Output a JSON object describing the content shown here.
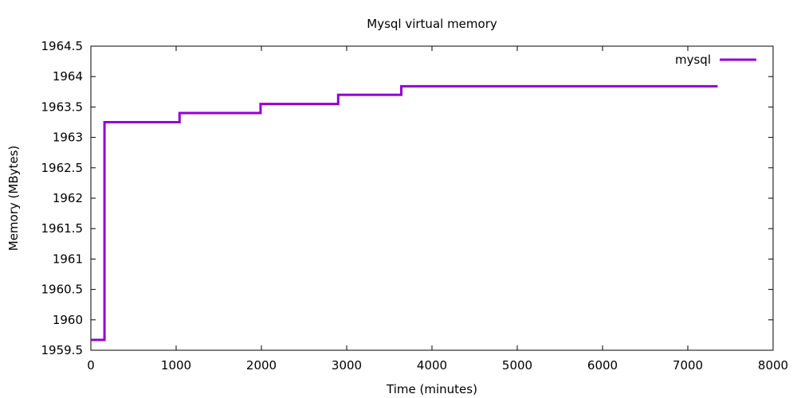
{
  "chart_data": {
    "type": "line",
    "title": "Mysql virtual memory",
    "xlabel": "Time (minutes)",
    "ylabel": "Memory (MBytes)",
    "xlim": [
      0,
      8000
    ],
    "ylim": [
      1959.5,
      1964.5
    ],
    "xticks": [
      "0",
      "1000",
      "2000",
      "3000",
      "4000",
      "5000",
      "6000",
      "7000",
      "8000"
    ],
    "yticks": [
      "1959.5",
      "1960",
      "1960.5",
      "1961",
      "1961.5",
      "1962",
      "1962.5",
      "1963",
      "1963.5",
      "1964",
      "1964.5"
    ],
    "grid": false,
    "legend_position": "top-right",
    "series": [
      {
        "name": "mysql",
        "color": "#9400d3",
        "step": true,
        "x": [
          0,
          160,
          160,
          1040,
          1040,
          1990,
          1990,
          2900,
          2900,
          3640,
          3640,
          7350
        ],
        "y": [
          1959.67,
          1959.67,
          1963.25,
          1963.25,
          1963.4,
          1963.4,
          1963.55,
          1963.55,
          1963.7,
          1963.7,
          1963.84,
          1963.84
        ]
      }
    ]
  }
}
